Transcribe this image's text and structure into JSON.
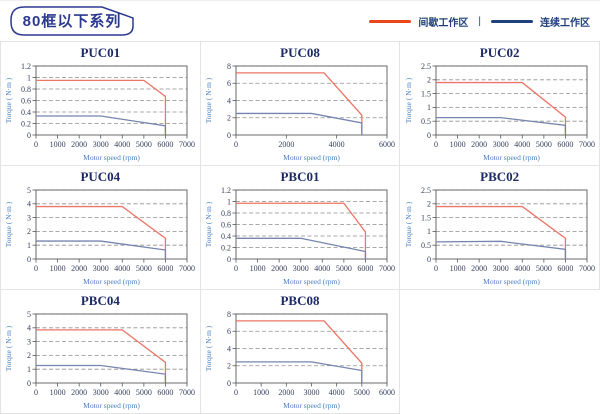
{
  "header": {
    "title": "80框以下系列",
    "legend": {
      "separator": "|",
      "items": [
        {
          "label": "间歇工作区",
          "color": "#e8481c"
        },
        {
          "label": "连续工作区",
          "color": "#21407e"
        }
      ]
    }
  },
  "chart_data": [
    {
      "type": "line",
      "title": "PUC01",
      "xlabel": "Motor speed (rpm)",
      "ylabel": "Torque ( N·m )",
      "xlim": [
        0,
        7000
      ],
      "xticks": [
        0,
        1000,
        2000,
        3000,
        4000,
        5000,
        6000,
        7000
      ],
      "ylim": [
        0,
        1.2
      ],
      "yticks": [
        0,
        0.2,
        0.4,
        0.6,
        0.8,
        1,
        1.2
      ],
      "grid": "dashed-horizontal",
      "legend_position": "none",
      "series": [
        {
          "name": "间歇工作区",
          "color": "#ec7566",
          "points": [
            [
              0,
              0.95
            ],
            [
              5000,
              0.95
            ],
            [
              6000,
              0.67
            ],
            [
              6000,
              0
            ]
          ]
        },
        {
          "name": "连续工作区",
          "color": "#7585ae",
          "points": [
            [
              0,
              0.33
            ],
            [
              3000,
              0.33
            ],
            [
              6000,
              0.16
            ],
            [
              6000,
              0
            ]
          ]
        }
      ]
    },
    {
      "type": "line",
      "title": "PUC08",
      "xlabel": "Motor speed (rpm)",
      "ylabel": "Torque ( N·m )",
      "xlim": [
        0,
        6000
      ],
      "xticks": [
        0,
        2000,
        4000,
        6000
      ],
      "ylim": [
        0,
        8
      ],
      "yticks": [
        0,
        2,
        4,
        6,
        8
      ],
      "grid": "dashed-horizontal",
      "legend_position": "none",
      "series": [
        {
          "name": "间歇工作区",
          "color": "#ec7566",
          "points": [
            [
              0,
              7.2
            ],
            [
              3500,
              7.2
            ],
            [
              5000,
              2.3
            ],
            [
              5000,
              0
            ]
          ]
        },
        {
          "name": "连续工作区",
          "color": "#7585ae",
          "points": [
            [
              0,
              2.5
            ],
            [
              3000,
              2.5
            ],
            [
              5000,
              1.4
            ],
            [
              5000,
              0
            ]
          ]
        }
      ]
    },
    {
      "type": "line",
      "title": "PUC02",
      "xlabel": "Motor speed (rpm)",
      "ylabel": "Torque ( N·m )",
      "xlim": [
        0,
        7000
      ],
      "xticks": [
        0,
        1000,
        2000,
        3000,
        4000,
        5000,
        6000,
        7000
      ],
      "ylim": [
        0,
        2.5
      ],
      "yticks": [
        0,
        0.5,
        1,
        1.5,
        2,
        2.5
      ],
      "grid": "dashed-horizontal",
      "legend_position": "none",
      "series": [
        {
          "name": "间歇工作区",
          "color": "#ec7566",
          "points": [
            [
              0,
              1.9
            ],
            [
              4000,
              1.9
            ],
            [
              6000,
              0.65
            ],
            [
              6000,
              0
            ]
          ]
        },
        {
          "name": "连续工作区",
          "color": "#7585ae",
          "points": [
            [
              0,
              0.63
            ],
            [
              3000,
              0.63
            ],
            [
              6000,
              0.35
            ],
            [
              6000,
              0
            ]
          ]
        }
      ]
    },
    {
      "type": "line",
      "title": "PUC04",
      "xlabel": "Motor speed (rpm)",
      "ylabel": "Torque ( N·m )",
      "xlim": [
        0,
        7000
      ],
      "xticks": [
        0,
        1000,
        2000,
        3000,
        4000,
        5000,
        6000,
        7000
      ],
      "ylim": [
        0,
        5
      ],
      "yticks": [
        0,
        1,
        2,
        3,
        4,
        5
      ],
      "grid": "dashed-horizontal",
      "legend_position": "none",
      "series": [
        {
          "name": "间歇工作区",
          "color": "#ec7566",
          "points": [
            [
              0,
              3.8
            ],
            [
              4000,
              3.8
            ],
            [
              6000,
              1.5
            ],
            [
              6000,
              0
            ]
          ]
        },
        {
          "name": "连续工作区",
          "color": "#7585ae",
          "points": [
            [
              0,
              1.3
            ],
            [
              3000,
              1.3
            ],
            [
              6000,
              0.65
            ],
            [
              6000,
              0
            ]
          ]
        }
      ]
    },
    {
      "type": "line",
      "title": "PBC01",
      "xlabel": "Motor speed (rpm)",
      "ylabel": "Torque ( N·m )",
      "xlim": [
        0,
        7000
      ],
      "xticks": [
        0,
        1000,
        2000,
        3000,
        4000,
        5000,
        6000,
        7000
      ],
      "ylim": [
        0,
        1.2
      ],
      "yticks": [
        0,
        0.2,
        0.4,
        0.6,
        0.8,
        1,
        1.2
      ],
      "grid": "dashed-horizontal",
      "legend_position": "none",
      "series": [
        {
          "name": "间歇工作区",
          "color": "#ec7566",
          "points": [
            [
              0,
              0.97
            ],
            [
              5000,
              0.97
            ],
            [
              6000,
              0.47
            ],
            [
              6000,
              0
            ]
          ]
        },
        {
          "name": "连续工作区",
          "color": "#7585ae",
          "points": [
            [
              0,
              0.36
            ],
            [
              3000,
              0.36
            ],
            [
              6000,
              0.13
            ],
            [
              6000,
              0
            ]
          ]
        }
      ]
    },
    {
      "type": "line",
      "title": "PBC02",
      "xlabel": "Motor speed (rpm)",
      "ylabel": "Torque ( N·m )",
      "xlim": [
        0,
        7000
      ],
      "xticks": [
        0,
        1000,
        2000,
        3000,
        4000,
        5000,
        6000,
        7000
      ],
      "ylim": [
        0,
        2.5
      ],
      "yticks": [
        0,
        0.5,
        1,
        1.5,
        2,
        2.5
      ],
      "grid": "dashed-horizontal",
      "legend_position": "none",
      "series": [
        {
          "name": "间歇工作区",
          "color": "#ec7566",
          "points": [
            [
              0,
              1.9
            ],
            [
              4000,
              1.9
            ],
            [
              6000,
              0.75
            ],
            [
              6000,
              0
            ]
          ]
        },
        {
          "name": "连续工作区",
          "color": "#7585ae",
          "points": [
            [
              0,
              0.62
            ],
            [
              3000,
              0.64
            ],
            [
              6000,
              0.35
            ],
            [
              6000,
              0
            ]
          ]
        }
      ]
    },
    {
      "type": "line",
      "title": "PBC04",
      "xlabel": "Motor speed (rpm)",
      "ylabel": "Torque ( N·m )",
      "xlim": [
        0,
        7000
      ],
      "xticks": [
        0,
        1000,
        2000,
        3000,
        4000,
        5000,
        6000,
        7000
      ],
      "ylim": [
        0,
        5
      ],
      "yticks": [
        0,
        1,
        2,
        3,
        4,
        5
      ],
      "grid": "dashed-horizontal",
      "legend_position": "none",
      "series": [
        {
          "name": "间歇工作区",
          "color": "#ec7566",
          "points": [
            [
              0,
              3.85
            ],
            [
              4000,
              3.85
            ],
            [
              6000,
              1.5
            ],
            [
              6000,
              0
            ]
          ]
        },
        {
          "name": "连续工作区",
          "color": "#7585ae",
          "points": [
            [
              0,
              1.27
            ],
            [
              3000,
              1.27
            ],
            [
              6000,
              0.64
            ],
            [
              6000,
              0
            ]
          ]
        }
      ]
    },
    {
      "type": "line",
      "title": "PBC08",
      "xlabel": "Motor speed (rpm)",
      "ylabel": "Torque ( N·m )",
      "xlim": [
        0,
        6000
      ],
      "xticks": [
        0,
        1000,
        2000,
        3000,
        4000,
        5000,
        6000
      ],
      "ylim": [
        0,
        8
      ],
      "yticks": [
        0,
        2,
        4,
        6,
        8
      ],
      "grid": "dashed-horizontal",
      "legend_position": "none",
      "series": [
        {
          "name": "间歇工作区",
          "color": "#ec7566",
          "points": [
            [
              0,
              7.2
            ],
            [
              3500,
              7.2
            ],
            [
              5000,
              2.3
            ],
            [
              5000,
              0
            ]
          ]
        },
        {
          "name": "连续工作区",
          "color": "#7585ae",
          "points": [
            [
              0,
              2.45
            ],
            [
              3000,
              2.45
            ],
            [
              5000,
              1.45
            ],
            [
              5000,
              0
            ]
          ]
        }
      ]
    }
  ]
}
